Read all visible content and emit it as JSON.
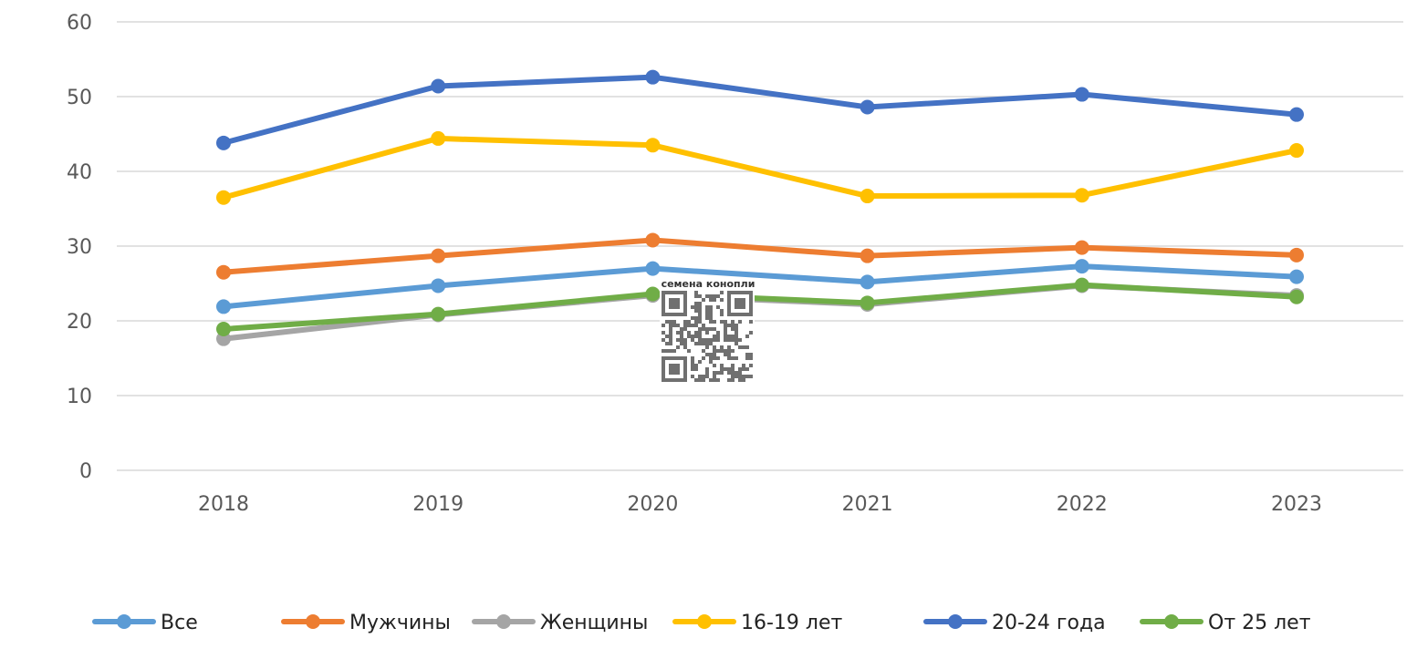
{
  "chart_data": {
    "type": "line",
    "title": "",
    "xlabel": "",
    "ylabel": "",
    "ylim": [
      0,
      60
    ],
    "yticks": [
      0,
      10,
      20,
      30,
      40,
      50,
      60
    ],
    "grid": true,
    "legend_position": "bottom",
    "categories": [
      "2018",
      "2019",
      "2020",
      "2021",
      "2022",
      "2023"
    ],
    "series": [
      {
        "name": "Все",
        "color": "#5B9BD5",
        "values": [
          21.9,
          24.7,
          27.0,
          25.2,
          27.3,
          25.9
        ]
      },
      {
        "name": "Мужчины",
        "color": "#ED7D31",
        "values": [
          26.5,
          28.7,
          30.8,
          28.7,
          29.8,
          28.8
        ]
      },
      {
        "name": "Женщины",
        "color": "#A5A5A5",
        "values": [
          17.6,
          20.8,
          23.4,
          22.2,
          24.7,
          23.4
        ]
      },
      {
        "name": "16-19 лет",
        "color": "#FFC000",
        "values": [
          36.5,
          44.4,
          43.5,
          36.7,
          36.8,
          42.8
        ]
      },
      {
        "name": "20-24 года",
        "color": "#4472C4",
        "values": [
          43.8,
          51.4,
          52.6,
          48.6,
          50.3,
          47.6
        ]
      },
      {
        "name": "От 25 лет",
        "color": "#70AD47",
        "values": [
          18.9,
          20.9,
          23.6,
          22.4,
          24.8,
          23.2
        ]
      }
    ]
  },
  "watermark": {
    "caption": "семена конопли",
    "icon": "qr-code-icon"
  }
}
